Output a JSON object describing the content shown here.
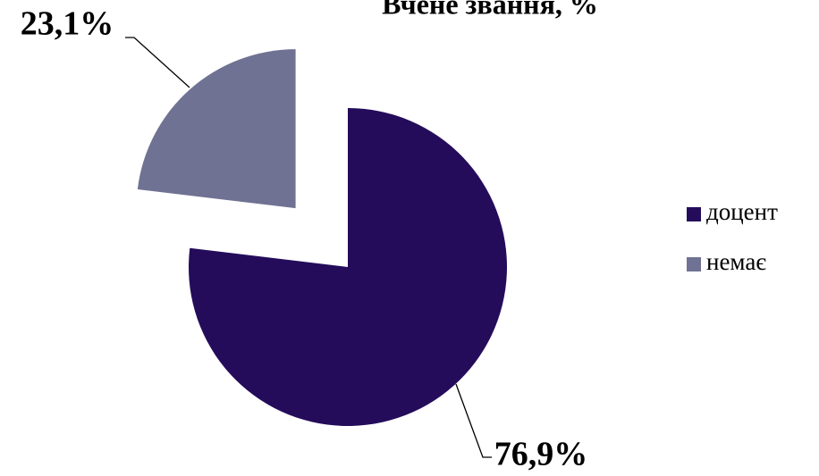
{
  "chart_data": {
    "type": "pie",
    "title": "Вчене звання, %",
    "categories": [
      "доцент",
      "немає"
    ],
    "values": [
      76.9,
      23.1
    ],
    "value_labels": [
      "76,9%",
      "23,1%"
    ],
    "colors": [
      "#240c5b",
      "#6f7292"
    ],
    "legend": "right"
  }
}
